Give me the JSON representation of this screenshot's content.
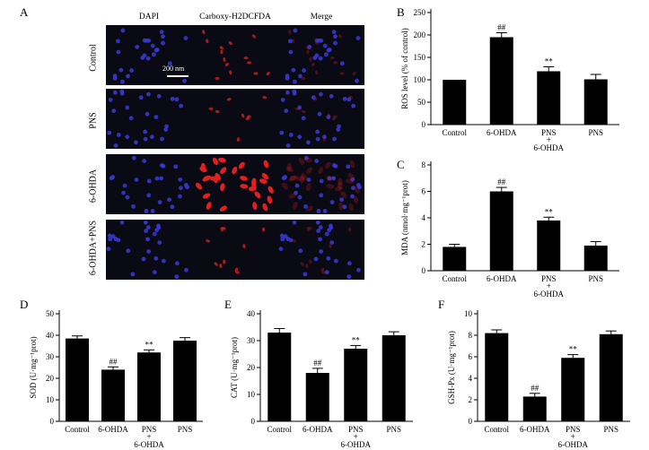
{
  "panelA": {
    "letter": "A",
    "columns": [
      "DAPI",
      "Carboxy-H2DCFDA",
      "Merge"
    ],
    "rows": [
      "Control",
      "PNS",
      "6-OHDA",
      "6-OHDA+PNS"
    ],
    "scalebar_label": "200 nm",
    "colors": {
      "dapi": "#3a3ad8",
      "ros": "#e02020"
    }
  },
  "chart_data": [
    {
      "type": "bar",
      "letter": "B",
      "categories": [
        "Control",
        "6-OHDA",
        "PNS",
        "PNS"
      ],
      "category_sublabel": "6-OHDA",
      "values": [
        100,
        195,
        119,
        101
      ],
      "errors": [
        0,
        10,
        10,
        11
      ],
      "annotations": [
        "",
        "##",
        "**",
        ""
      ],
      "ylabel": "ROS level (% of control)",
      "yticks": [
        0,
        50,
        100,
        150,
        200,
        250
      ],
      "ylim": [
        0,
        250
      ]
    },
    {
      "type": "bar",
      "letter": "C",
      "categories": [
        "Control",
        "6-OHDA",
        "PNS",
        "PNS"
      ],
      "category_sublabel": "6-OHDA",
      "values": [
        1.8,
        6.0,
        3.8,
        1.9
      ],
      "errors": [
        0.2,
        0.3,
        0.25,
        0.3
      ],
      "annotations": [
        "",
        "##",
        "**",
        ""
      ],
      "ylabel": "MDA (nmol·mg⁻¹prot)",
      "yticks": [
        0,
        2,
        4,
        6,
        8
      ],
      "ylim": [
        0,
        8
      ]
    },
    {
      "type": "bar",
      "letter": "D",
      "categories": [
        "Control",
        "6-OHDA",
        "PNS",
        "PNS"
      ],
      "category_sublabel": "6-OHDA",
      "values": [
        38.5,
        24,
        32,
        37.5
      ],
      "errors": [
        1.2,
        1.3,
        1.2,
        1.4
      ],
      "annotations": [
        "",
        "##",
        "**",
        ""
      ],
      "ylabel": "SOD (U·mg⁻¹prot)",
      "yticks": [
        0,
        10,
        20,
        30,
        40,
        50
      ],
      "ylim": [
        0,
        50
      ]
    },
    {
      "type": "bar",
      "letter": "E",
      "categories": [
        "Control",
        "6-OHDA",
        "PNS",
        "PNS"
      ],
      "category_sublabel": "6-OHDA",
      "values": [
        33,
        18,
        27,
        32
      ],
      "errors": [
        1.5,
        1.7,
        1.2,
        1.3
      ],
      "annotations": [
        "",
        "##",
        "**",
        ""
      ],
      "ylabel": "CAT (U·mg⁻¹prot)",
      "yticks": [
        0,
        10,
        20,
        30,
        40
      ],
      "ylim": [
        0,
        40
      ]
    },
    {
      "type": "bar",
      "letter": "F",
      "categories": [
        "Control",
        "6-OHDA",
        "PNS",
        "PNS"
      ],
      "category_sublabel": "6-OHDA",
      "values": [
        8.2,
        2.3,
        5.9,
        8.1
      ],
      "errors": [
        0.3,
        0.3,
        0.3,
        0.3
      ],
      "annotations": [
        "",
        "##",
        "**",
        ""
      ],
      "ylabel": "GSH-Px (U·mg⁻¹prot)",
      "yticks": [
        0,
        2,
        4,
        6,
        8,
        10
      ],
      "ylim": [
        0,
        10
      ]
    }
  ]
}
